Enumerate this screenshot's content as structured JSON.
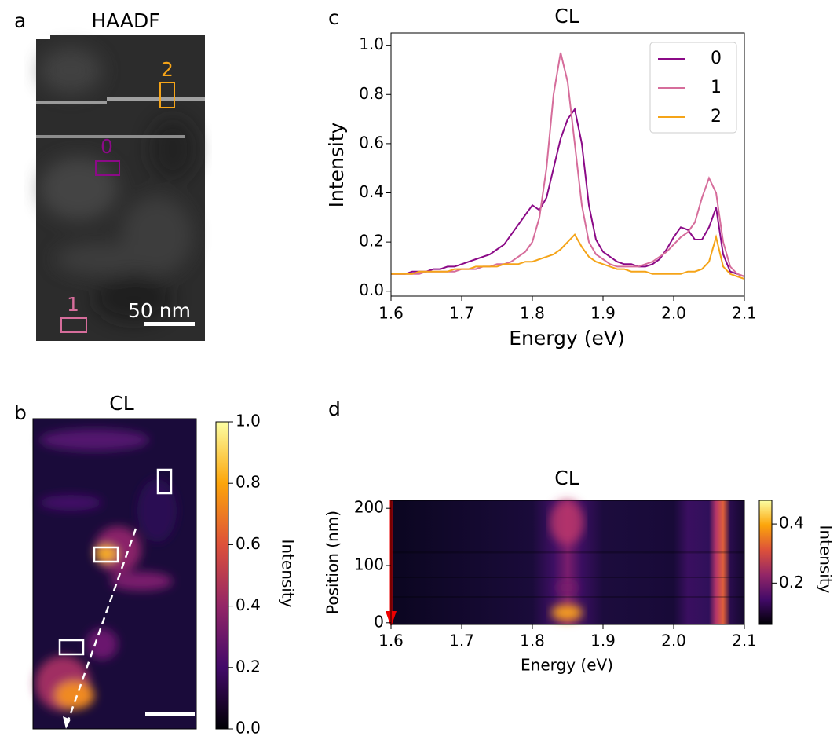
{
  "panel_labels": [
    "a",
    "b",
    "c",
    "d"
  ],
  "haadf": {
    "title": "HAADF",
    "scale_bar": "50 nm",
    "region_labels": [
      "0",
      "1",
      "2"
    ]
  },
  "cl_map": {
    "title": "CL",
    "colorbar": {
      "label": "Intensity",
      "lim": [
        0,
        1
      ],
      "ticks": [
        {
          "value": 0,
          "label": "0.0"
        },
        0.2,
        0.4,
        0.6,
        0.8,
        {
          "value": 1,
          "label": "1.0"
        }
      ]
    }
  },
  "chart_data": {
    "type": "line",
    "title": "CL",
    "xlabel": "Energy (eV)",
    "ylabel": "Intensity",
    "x": [
      1.6,
      1.61,
      1.62,
      1.63,
      1.64,
      1.65,
      1.66,
      1.67,
      1.68,
      1.69,
      1.7,
      1.71,
      1.72,
      1.73,
      1.74,
      1.75,
      1.76,
      1.77,
      1.78,
      1.79,
      1.8,
      1.81,
      1.82,
      1.83,
      1.84,
      1.85,
      1.86,
      1.87,
      1.88,
      1.89,
      1.9,
      1.91,
      1.92,
      1.93,
      1.94,
      1.95,
      1.96,
      1.97,
      1.98,
      1.99,
      2.0,
      2.01,
      2.02,
      2.03,
      2.04,
      2.05,
      2.06,
      2.07,
      2.08,
      2.09,
      2.1
    ],
    "series": [
      {
        "name": "0",
        "color": "#8b0a87",
        "values": [
          0.07,
          0.07,
          0.07,
          0.08,
          0.08,
          0.08,
          0.09,
          0.09,
          0.1,
          0.1,
          0.11,
          0.12,
          0.13,
          0.14,
          0.15,
          0.17,
          0.19,
          0.23,
          0.27,
          0.31,
          0.35,
          0.33,
          0.38,
          0.5,
          0.62,
          0.7,
          0.74,
          0.6,
          0.35,
          0.21,
          0.16,
          0.14,
          0.12,
          0.11,
          0.11,
          0.1,
          0.1,
          0.11,
          0.13,
          0.17,
          0.22,
          0.26,
          0.25,
          0.21,
          0.21,
          0.26,
          0.34,
          0.15,
          0.08,
          0.07,
          0.06
        ]
      },
      {
        "name": "1",
        "color": "#d66d9b",
        "values": [
          0.07,
          0.07,
          0.07,
          0.07,
          0.07,
          0.08,
          0.08,
          0.08,
          0.08,
          0.08,
          0.09,
          0.09,
          0.09,
          0.1,
          0.1,
          0.11,
          0.11,
          0.12,
          0.14,
          0.16,
          0.2,
          0.3,
          0.5,
          0.8,
          0.97,
          0.85,
          0.6,
          0.35,
          0.2,
          0.15,
          0.13,
          0.11,
          0.1,
          0.1,
          0.1,
          0.1,
          0.11,
          0.12,
          0.14,
          0.16,
          0.19,
          0.22,
          0.24,
          0.28,
          0.38,
          0.46,
          0.4,
          0.2,
          0.1,
          0.07,
          0.06
        ]
      },
      {
        "name": "2",
        "color": "#f5a418",
        "values": [
          0.07,
          0.07,
          0.07,
          0.07,
          0.08,
          0.08,
          0.08,
          0.08,
          0.08,
          0.09,
          0.09,
          0.09,
          0.1,
          0.1,
          0.1,
          0.1,
          0.11,
          0.11,
          0.11,
          0.12,
          0.12,
          0.13,
          0.14,
          0.15,
          0.17,
          0.2,
          0.23,
          0.18,
          0.14,
          0.12,
          0.11,
          0.1,
          0.09,
          0.09,
          0.08,
          0.08,
          0.08,
          0.07,
          0.07,
          0.07,
          0.07,
          0.07,
          0.08,
          0.08,
          0.09,
          0.12,
          0.22,
          0.1,
          0.07,
          0.06,
          0.05
        ]
      }
    ],
    "xlim": [
      1.6,
      2.1
    ],
    "ylim": [
      -0.02,
      1.05
    ],
    "xticks": [
      1.6,
      1.7,
      1.8,
      1.9,
      {
        "value": 2,
        "label": "2.0"
      },
      2.1
    ],
    "yticks": [
      {
        "value": 0,
        "label": "0.0"
      },
      0.2,
      0.4,
      0.6,
      0.8,
      {
        "value": 1,
        "label": "1.0"
      }
    ],
    "legend": "upper right"
  },
  "cl_linescan": {
    "title": "CL",
    "xlabel": "Energy (eV)",
    "ylabel": "Position (nm)",
    "xlim": [
      1.6,
      2.1
    ],
    "ylim": [
      -3,
      214
    ],
    "xticks": [
      1.6,
      1.7,
      1.8,
      1.9,
      {
        "value": 2,
        "label": "2.0"
      },
      2.1
    ],
    "yticks": [
      0,
      100,
      200
    ],
    "colorbar": {
      "label": "Intensity",
      "lim": [
        0.06,
        0.48
      ],
      "ticks": [
        0.2,
        0.4
      ]
    }
  }
}
